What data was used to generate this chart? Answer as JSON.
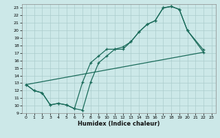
{
  "xlabel": "Humidex (Indice chaleur)",
  "ylabel": "",
  "background_color": "#cce8e8",
  "grid_color": "#aacccc",
  "line_color": "#1a6b5a",
  "xlim": [
    -0.5,
    23.5
  ],
  "ylim": [
    9,
    23.5
  ],
  "xticks": [
    0,
    1,
    2,
    3,
    4,
    5,
    6,
    7,
    8,
    9,
    10,
    11,
    12,
    13,
    14,
    15,
    16,
    17,
    18,
    19,
    20,
    21,
    22,
    23
  ],
  "yticks": [
    9,
    10,
    11,
    12,
    13,
    14,
    15,
    16,
    17,
    18,
    19,
    20,
    21,
    22,
    23
  ],
  "line1_x": [
    0,
    1,
    2,
    3,
    4,
    5,
    6,
    7,
    8,
    9,
    10,
    11,
    12,
    13,
    14,
    15,
    16,
    17,
    18,
    19,
    20,
    22
  ],
  "line1_y": [
    12.8,
    12.0,
    11.7,
    10.1,
    10.3,
    10.1,
    9.6,
    9.4,
    13.1,
    15.7,
    16.6,
    17.5,
    17.5,
    18.5,
    19.8,
    20.8,
    21.3,
    23.0,
    23.2,
    22.8,
    20.0,
    17.1
  ],
  "line2_x": [
    0,
    1,
    2,
    3,
    4,
    5,
    6,
    7,
    8,
    9,
    10,
    11,
    12,
    13,
    14,
    15,
    16,
    17,
    18,
    19,
    20,
    22
  ],
  "line2_y": [
    12.8,
    12.0,
    11.7,
    10.1,
    10.3,
    10.1,
    9.6,
    13.1,
    15.7,
    16.6,
    17.5,
    17.5,
    17.8,
    18.5,
    19.8,
    20.8,
    21.3,
    23.0,
    23.2,
    22.8,
    20.0,
    17.4
  ],
  "line3_x": [
    0,
    22
  ],
  "line3_y": [
    12.8,
    17.1
  ]
}
